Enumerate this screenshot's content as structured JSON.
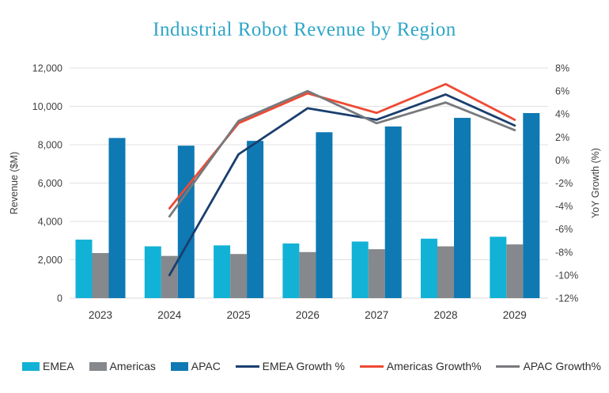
{
  "title": "Industrial Robot Revenue by Region",
  "colors": {
    "title_accent": "#2fa6c8",
    "gridline": "#e2e2e2",
    "axis_line": "#d9d9d9",
    "tick_text": "#404040"
  },
  "chart_data": {
    "type": "combo-bar-line",
    "categories": [
      "2023",
      "2024",
      "2025",
      "2026",
      "2027",
      "2028",
      "2029"
    ],
    "bar_series": [
      {
        "name": "EMEA",
        "color": "#12b2d6",
        "values": [
          3050,
          2700,
          2750,
          2850,
          2950,
          3100,
          3200
        ]
      },
      {
        "name": "Americas",
        "color": "#85888c",
        "values": [
          2350,
          2200,
          2300,
          2400,
          2550,
          2700,
          2800
        ]
      },
      {
        "name": "APAC",
        "color": "#0e79b2",
        "values": [
          8350,
          7950,
          8200,
          8650,
          8950,
          9400,
          9650
        ]
      }
    ],
    "line_series": [
      {
        "name": "EMEA Growth %",
        "color": "#1a3e6e",
        "values": [
          null,
          -10,
          0.5,
          4.5,
          3.5,
          5.7,
          3.0
        ]
      },
      {
        "name": "Americas Growth%",
        "color": "#ee4a33",
        "values": [
          null,
          -4.2,
          3.2,
          5.8,
          4.1,
          6.6,
          3.5
        ]
      },
      {
        "name": "APAC Growth%",
        "color": "#77797c",
        "values": [
          null,
          -4.9,
          3.4,
          6.0,
          3.2,
          5.0,
          2.6
        ]
      }
    ],
    "y_left": {
      "label": "Revenue ($M)",
      "min": 0,
      "max": 12000,
      "step": 2000,
      "ticks": [
        "12,000",
        "10,000",
        "8,000",
        "6,000",
        "4,000",
        "2,000",
        "0"
      ]
    },
    "y_right": {
      "label": "YoY Growth (%)",
      "min": -12,
      "max": 8,
      "step": 2,
      "ticks": [
        "8%",
        "6%",
        "4%",
        "2%",
        "0%",
        "-2%",
        "-4%",
        "-6%",
        "-8%",
        "-10%",
        "-12%"
      ]
    },
    "legend_position": "bottom",
    "grid": "horizontal"
  }
}
